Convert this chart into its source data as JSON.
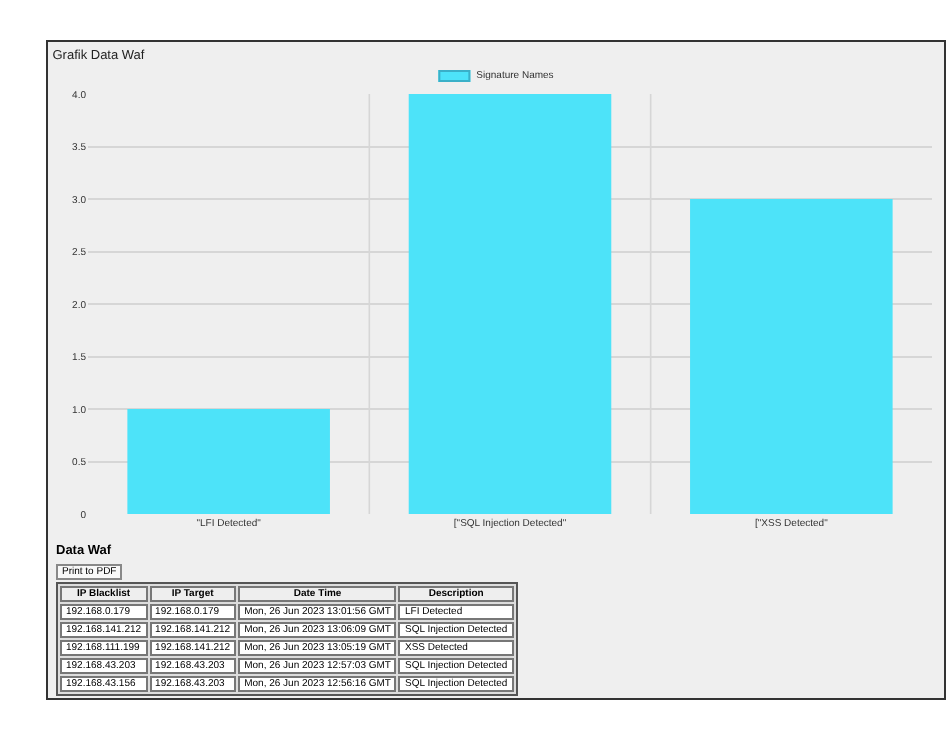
{
  "chart_data": [
    {
      "type": "bar",
      "title": "Grafik Data Waf",
      "categories": [
        "\"LFI Detected\"",
        "[\"SQL Injection Detected\"",
        "[\"XSS Detected\""
      ],
      "series": [
        {
          "name": "Signature Names",
          "color": "#4de3f9",
          "values": [
            1,
            4,
            3
          ]
        }
      ],
      "ylim": [
        0,
        4
      ],
      "yticks": [
        0,
        {
          "value": 0.5,
          "label": "0.5"
        },
        {
          "value": 1,
          "label": "1.0"
        },
        {
          "value": 1.5,
          "label": "1.5"
        },
        {
          "value": 2,
          "label": "2.0"
        },
        {
          "value": 2.5,
          "label": "2.5"
        },
        {
          "value": 3,
          "label": "3.0"
        },
        {
          "value": 3.5,
          "label": "3.5"
        },
        {
          "value": 4,
          "label": "4.0"
        }
      ],
      "grid": true,
      "legend": "top"
    },
    {
      "type": "other",
      "title": "Data Waf",
      "annotations": [
        "Print to PDF",
        "IP Blacklist",
        "IP Target",
        "Date Time",
        "Description",
        "192.168.0.179",
        "192.168.0.179",
        "Mon, 26 Jun 2023 13:01:56 GMT",
        "LFI Detected",
        "192.168.141.212",
        "192.168.141.212",
        "Mon, 26 Jun 2023 13:06:09 GMT",
        "SQL Injection Detected",
        "192.168.111.199",
        "192.168.141.212",
        "Mon, 26 Jun 2023 13:05:19 GMT",
        "XSS Detected",
        "192.168.43.203",
        "192.168.43.203",
        "Mon, 26 Jun 2023 12:57:03 GMT",
        "SQL Injection Detected",
        "192.168.43.156",
        "192.168.43.203",
        "Mon, 26 Jun 2023 12:56:16 GMT",
        "SQL Injection Detected"
      ]
    }
  ]
}
